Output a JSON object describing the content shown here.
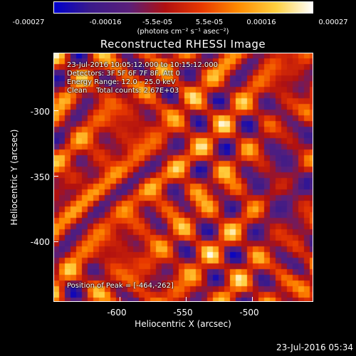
{
  "colorbar": {
    "tick_labels": [
      "-0.00027",
      "-0.00016",
      "-5.5e-05",
      "5.5e-05",
      "0.00016",
      "0.00027"
    ],
    "units": "(photons cm⁻² s⁻¹ asec⁻²)",
    "colors": [
      "#0000cc",
      "#3a1a8a",
      "#5a1f7a",
      "#b01010",
      "#e83800",
      "#ff8a00",
      "#ffd040",
      "#ffffff"
    ]
  },
  "title": "Reconstructed RHESSI Image",
  "annotations": {
    "time_range": "23-Jul-2016 10:05:12.000 to 10:15:12.000",
    "detectors": "Detectors: 3F 5F 6F 7F 8F, Att 0",
    "energy_range": "Energy Range: 12.0 - 25.0 keV",
    "clean_counts": "Clean    Total counts: 2.67E+03",
    "peak_position": "Position of Peak = [-464,-262]"
  },
  "axes": {
    "xlabel": "Heliocentric X (arcsec)",
    "ylabel": "Heliocentric Y (arcsec)",
    "xticks": [
      "-600",
      "-550",
      "-500"
    ],
    "yticks": [
      "-300",
      "-350",
      "-400"
    ]
  },
  "timestamp": "23-Jul-2016 05:34"
}
